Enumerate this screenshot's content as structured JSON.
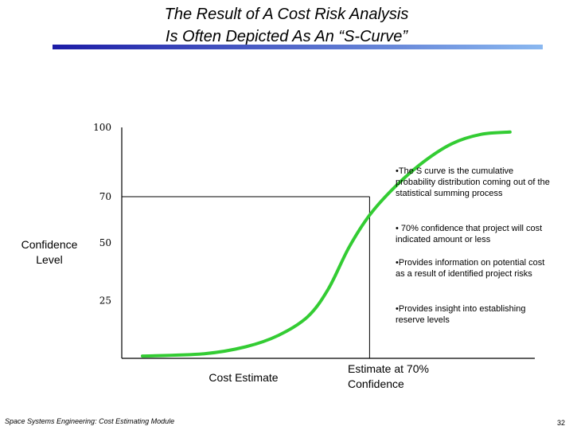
{
  "slide": {
    "title_line1": "The Result of A Cost Risk Analysis",
    "title_line2": "Is Often Depicted As An “S-Curve”",
    "footer": "Space Systems Engineering: Cost Estimating Module",
    "page_number": "32",
    "title_bar_colors": [
      "#1c1ca6",
      "#8ab8f0"
    ]
  },
  "chart_data": {
    "type": "line",
    "title": "",
    "ylabel": "Confidence Level",
    "xlabel": "Cost Estimate",
    "yticks": [
      25,
      50,
      70,
      100
    ],
    "ylim": [
      0,
      100
    ],
    "curve_color": "#33cc33",
    "series": [
      {
        "x": [
          0.05,
          0.2,
          0.3,
          0.38,
          0.45,
          0.5,
          0.55,
          0.6,
          0.66,
          0.73,
          0.8,
          0.87,
          0.94
        ],
        "values": [
          1,
          2,
          5,
          10,
          18,
          30,
          48,
          62,
          74,
          85,
          93,
          97,
          98
        ]
      }
    ],
    "reference": {
      "y": 70,
      "x": 0.6,
      "label": "Estimate at 70% Confidence"
    },
    "annotations": [
      "•The S curve is the cumulative probability distribution coming out of the statistical summing process",
      "• 70% confidence that project will cost indicated amount or less",
      "•Provides information on potential cost as a result of identified project risks",
      "•Provides insight into establishing reserve levels"
    ]
  }
}
